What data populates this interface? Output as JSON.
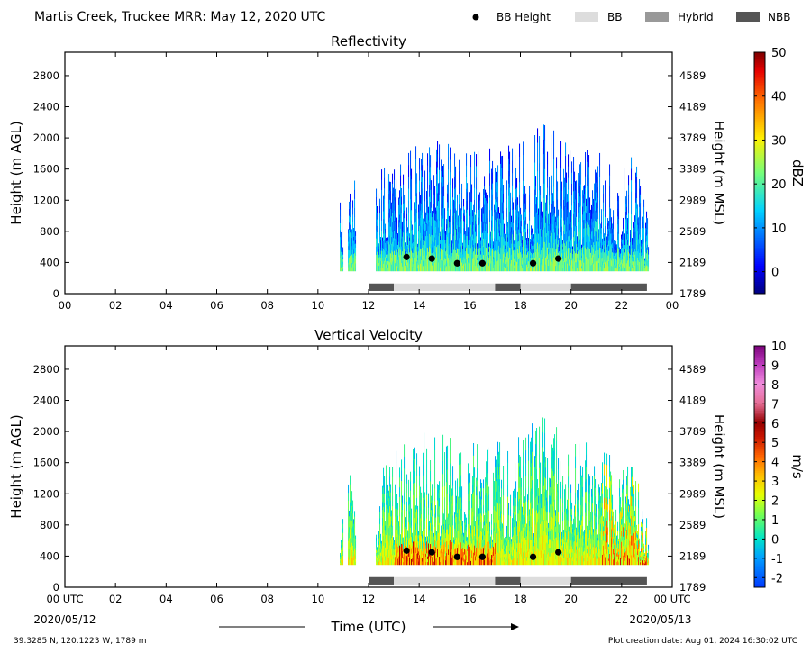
{
  "header": {
    "title": "Martis Creek, Truckee MRR:  May 12, 2020 UTC",
    "legend": [
      {
        "label": "BB Height",
        "kind": "dot",
        "color": "#000000"
      },
      {
        "label": "BB",
        "kind": "swatch",
        "color": "#dddddd"
      },
      {
        "label": "Hybrid",
        "kind": "swatch",
        "color": "#999999"
      },
      {
        "label": "NBB",
        "kind": "swatch",
        "color": "#555555"
      }
    ]
  },
  "footer": {
    "location": "39.3285 N, 120.1223 W, 1789 m",
    "creation": "Plot creation date: Aug 01, 2024 16:30:02 UTC",
    "xlabel": "Time (UTC)",
    "start_date": "2020/05/12",
    "end_date": "2020/05/13"
  },
  "chart_data": [
    {
      "type": "heatmap",
      "title": "Reflectivity",
      "ylabel": "Height (m AGL)",
      "y2label": "Height (m MSL)",
      "xlim": [
        0,
        24
      ],
      "ylim": [
        0,
        3100
      ],
      "x_ticks": [
        "00",
        "02",
        "04",
        "06",
        "08",
        "10",
        "12",
        "14",
        "16",
        "18",
        "20",
        "22",
        "00"
      ],
      "y_ticks": [
        0,
        400,
        800,
        1200,
        1600,
        2000,
        2400,
        2800
      ],
      "y2_ticks": [
        1789,
        2189,
        2589,
        2989,
        3389,
        3789,
        4189,
        4589
      ],
      "colorbar": {
        "label": "dBZ",
        "min": -5,
        "max": 50,
        "ticks": [
          0,
          10,
          20,
          30,
          40,
          50
        ]
      },
      "data_window": [
        10.85,
        23.05
      ],
      "data_gap": [
        11.5,
        12.25
      ],
      "column_top_profile": [
        [
          10.85,
          1100
        ],
        [
          11.2,
          1300
        ],
        [
          11.5,
          1500
        ],
        [
          12.25,
          1400
        ],
        [
          13,
          1650
        ],
        [
          14,
          1750
        ],
        [
          15,
          1800
        ],
        [
          16,
          1750
        ],
        [
          17,
          1700
        ],
        [
          18,
          1800
        ],
        [
          19,
          2100
        ],
        [
          20,
          1700
        ],
        [
          21,
          1700
        ],
        [
          22,
          1500
        ],
        [
          22.5,
          1750
        ],
        [
          23.05,
          900
        ]
      ],
      "bb_heights": [
        {
          "x": 13.5,
          "y": 470
        },
        {
          "x": 14.5,
          "y": 450
        },
        {
          "x": 15.5,
          "y": 390
        },
        {
          "x": 16.5,
          "y": 390
        },
        {
          "x": 18.5,
          "y": 390
        },
        {
          "x": 19.5,
          "y": 450
        }
      ],
      "bb_type_bar": [
        {
          "start": 12,
          "end": 13,
          "type": "NBB"
        },
        {
          "start": 13,
          "end": 17,
          "type": "BB"
        },
        {
          "start": 17,
          "end": 18,
          "type": "NBB"
        },
        {
          "start": 18,
          "end": 20,
          "type": "BB"
        },
        {
          "start": 20,
          "end": 23,
          "type": "NBB"
        }
      ]
    },
    {
      "type": "heatmap",
      "title": "Vertical Velocity",
      "ylabel": "Height (m AGL)",
      "y2label": "Height (m MSL)",
      "xlim": [
        0,
        24
      ],
      "ylim": [
        0,
        3100
      ],
      "x_ticks": [
        "00 UTC",
        "02",
        "04",
        "06",
        "08",
        "10",
        "12",
        "14",
        "16",
        "18",
        "20",
        "22",
        "00 UTC"
      ],
      "y_ticks": [
        0,
        400,
        800,
        1200,
        1600,
        2000,
        2400,
        2800
      ],
      "y2_ticks": [
        1789,
        2189,
        2589,
        2989,
        3389,
        3789,
        4189,
        4589
      ],
      "colorbar": {
        "label": "m/s",
        "min": -2.5,
        "max": 10,
        "ticks": [
          -2,
          -1,
          0,
          1,
          2,
          3,
          4,
          5,
          6,
          7,
          8,
          9,
          10
        ]
      },
      "data_window": [
        10.85,
        23.05
      ],
      "data_gap": [
        11.5,
        12.25
      ],
      "column_top_profile": [
        [
          10.85,
          1100
        ],
        [
          11.2,
          1300
        ],
        [
          11.5,
          1500
        ],
        [
          12.25,
          1400
        ],
        [
          13,
          1650
        ],
        [
          14,
          1850
        ],
        [
          15,
          1800
        ],
        [
          16,
          1750
        ],
        [
          17,
          1700
        ],
        [
          18,
          1800
        ],
        [
          19,
          2100
        ],
        [
          20,
          1700
        ],
        [
          21,
          1700
        ],
        [
          22,
          1400
        ],
        [
          22.5,
          1500
        ],
        [
          23.05,
          900
        ]
      ],
      "bb_heights": [
        {
          "x": 13.5,
          "y": 470
        },
        {
          "x": 14.5,
          "y": 450
        },
        {
          "x": 15.5,
          "y": 390
        },
        {
          "x": 16.5,
          "y": 390
        },
        {
          "x": 18.5,
          "y": 390
        },
        {
          "x": 19.5,
          "y": 450
        }
      ],
      "bb_type_bar": [
        {
          "start": 12,
          "end": 13,
          "type": "NBB"
        },
        {
          "start": 13,
          "end": 17,
          "type": "BB"
        },
        {
          "start": 17,
          "end": 18,
          "type": "NBB"
        },
        {
          "start": 18,
          "end": 20,
          "type": "BB"
        },
        {
          "start": 20,
          "end": 23,
          "type": "NBB"
        }
      ]
    }
  ]
}
